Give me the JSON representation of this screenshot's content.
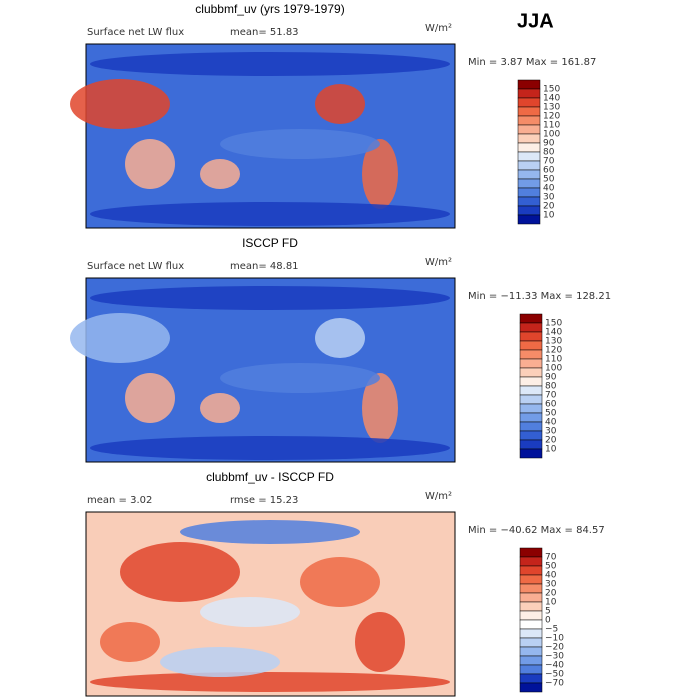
{
  "header": {
    "season": "JJA"
  },
  "panels": [
    {
      "title": "clubbmf_uv (yrs 1979-1979)",
      "left": "Surface net LW flux",
      "mean": "mean=  51.83",
      "units": "W/m²",
      "minmax": "Min =   3.87 Max = 161.87",
      "colorbar": {
        "labels": [
          "150",
          "140",
          "130",
          "120",
          "110",
          "100",
          "90",
          "80",
          "70",
          "60",
          "50",
          "40",
          "30",
          "20",
          "10"
        ],
        "colors": [
          "#8b0000",
          "#c4241b",
          "#e0452c",
          "#ef6a45",
          "#f58c68",
          "#f9ae92",
          "#fcd0ba",
          "#fdefe6",
          "#dce8f8",
          "#b9d0f3",
          "#95b7ee",
          "#729ce7",
          "#517fde",
          "#335fd2",
          "#1a3cc0",
          "#00129a"
        ]
      }
    },
    {
      "title": "ISCCP FD",
      "left": "Surface net LW flux",
      "mean": "mean=  48.81",
      "units": "W/m²",
      "minmax": "Min = −11.33 Max = 128.21",
      "colorbar": {
        "labels": [
          "150",
          "140",
          "130",
          "120",
          "110",
          "100",
          "90",
          "80",
          "70",
          "60",
          "50",
          "40",
          "30",
          "20",
          "10"
        ],
        "colors": [
          "#8b0000",
          "#c4241b",
          "#e0452c",
          "#ef6a45",
          "#f58c68",
          "#f9ae92",
          "#fcd0ba",
          "#fdefe6",
          "#dce8f8",
          "#b9d0f3",
          "#95b7ee",
          "#729ce7",
          "#517fde",
          "#335fd2",
          "#1a3cc0",
          "#00129a"
        ]
      }
    },
    {
      "title": "clubbmf_uv - ISCCP FD",
      "left": "mean =   3.02",
      "mean": "rmse =  15.23",
      "units": "W/m²",
      "minmax": "Min = −40.62 Max =  84.57",
      "colorbar": {
        "labels": [
          "70",
          "50",
          "40",
          "30",
          "20",
          "10",
          "5",
          "0",
          "−5",
          "−10",
          "−20",
          "−30",
          "−40",
          "−50",
          "−70"
        ],
        "colors": [
          "#8b0000",
          "#c4241b",
          "#e0452c",
          "#ef6a45",
          "#f58c68",
          "#f9ae92",
          "#fcd0ba",
          "#fdefe6",
          "#ffffff",
          "#dce8f8",
          "#b9d0f3",
          "#95b7ee",
          "#729ce7",
          "#517fde",
          "#1a3cc0",
          "#00129a"
        ]
      }
    }
  ]
}
